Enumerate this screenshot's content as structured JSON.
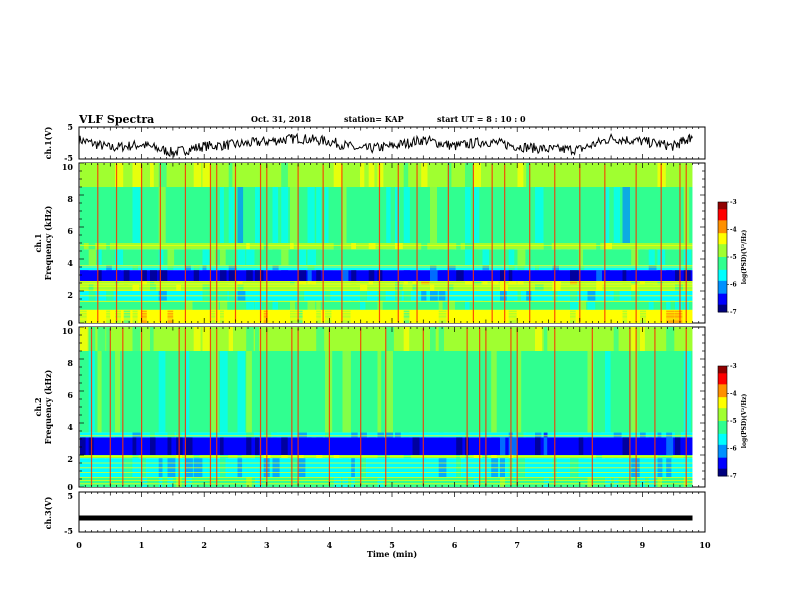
{
  "header": {
    "title": "VLF Spectra",
    "date": "Oct. 31, 2018",
    "station": "station= KAP",
    "start": "start  UT =  8 : 10 : 0"
  },
  "colors": {
    "frame": "#000000",
    "spectro_stops": [
      "#00007f",
      "#0000ff",
      "#0090ff",
      "#00ffff",
      "#30ff90",
      "#a0ff30",
      "#ffff00",
      "#ff9000",
      "#ff0000",
      "#900000"
    ]
  },
  "chart_data": [
    {
      "type": "line",
      "panel": "ch1-waveform",
      "ylabel": "ch.1(V)",
      "ylim": [
        -5,
        5
      ],
      "yticks": [
        "5",
        "-5"
      ],
      "x": [
        0,
        0.5,
        1,
        1.5,
        2,
        2.5,
        3,
        3.5,
        4,
        4.5,
        5,
        5.5,
        6,
        6.5,
        7,
        7.5,
        8,
        8.5,
        9,
        9.5,
        9.8
      ],
      "y": [
        1.0,
        -1.5,
        -0.5,
        -3.0,
        -1.0,
        -0.5,
        0.5,
        1.5,
        0.5,
        -2.0,
        -1.0,
        1.0,
        -1.0,
        0.5,
        -1.0,
        -2.0,
        -2.0,
        1.5,
        0.5,
        -1.0,
        2.0
      ]
    },
    {
      "type": "heatmap",
      "panel": "ch1-spectrogram",
      "ylabel": "ch.1\nFrequency (kHz)",
      "ylim": [
        0,
        10
      ],
      "yticks": [
        "0",
        "2",
        "4",
        "6",
        "8",
        "10"
      ],
      "colorbar": {
        "label": "log(PSD)(V²/Hz)",
        "range": [
          -7,
          -3
        ],
        "ticks": [
          "-3",
          "-4",
          "-5",
          "-6",
          "-7"
        ]
      },
      "bands_khz": [
        {
          "range": [
            8.5,
            10
          ],
          "level": 0.58
        },
        {
          "range": [
            5.0,
            8.5
          ],
          "level": 0.4
        },
        {
          "range": [
            4.6,
            5.0
          ],
          "level": 0.55
        },
        {
          "range": [
            3.6,
            4.6
          ],
          "level": 0.42
        },
        {
          "range": [
            3.3,
            3.6
          ],
          "level": 0.3
        },
        {
          "range": [
            2.6,
            3.3
          ],
          "level": 0.06
        },
        {
          "range": [
            2.4,
            2.6
          ],
          "level": 0.6
        },
        {
          "range": [
            2.0,
            2.4
          ],
          "level": 0.55
        },
        {
          "range": [
            1.4,
            2.0
          ],
          "level": 0.35
        },
        {
          "range": [
            0.8,
            1.4
          ],
          "level": 0.45
        },
        {
          "range": [
            0,
            0.8
          ],
          "level": 0.62
        }
      ],
      "lines_khz": [
        0.2,
        0.3,
        0.5,
        0.65,
        0.8,
        1.35,
        1.7,
        2.05,
        2.3,
        2.45,
        2.6,
        3.5,
        3.6,
        4.85
      ],
      "spikes_min": [
        0.3,
        0.6,
        1.0,
        1.3,
        1.7,
        2.1,
        2.2,
        2.5,
        2.9,
        3.0,
        3.5,
        3.9,
        4.2,
        4.8,
        5.1,
        5.4,
        5.9,
        6.3,
        6.6,
        6.8,
        7.2,
        7.6,
        8.0,
        8.4,
        8.9,
        9.3,
        9.6,
        9.7
      ]
    },
    {
      "type": "heatmap",
      "panel": "ch2-spectrogram",
      "ylabel": "ch.2\nFrequency (kHz)",
      "ylim": [
        0,
        10
      ],
      "yticks": [
        "0",
        "2",
        "4",
        "6",
        "8",
        "10"
      ],
      "colorbar": {
        "label": "log(PSD)(V²/Hz)",
        "range": [
          -7,
          -3
        ],
        "ticks": [
          "-3",
          "-4",
          "-5",
          "-6",
          "-7"
        ]
      },
      "bands_khz": [
        {
          "range": [
            8.5,
            10
          ],
          "level": 0.58
        },
        {
          "range": [
            3.4,
            8.5
          ],
          "level": 0.45
        },
        {
          "range": [
            3.1,
            3.4
          ],
          "level": 0.3
        },
        {
          "range": [
            2.0,
            3.1
          ],
          "level": 0.06
        },
        {
          "range": [
            1.8,
            2.0
          ],
          "level": 0.55
        },
        {
          "range": [
            0.6,
            1.8
          ],
          "level": 0.3
        },
        {
          "range": [
            0,
            0.6
          ],
          "level": 0.4
        }
      ],
      "lines_khz": [
        0.2,
        0.4,
        0.6,
        0.9,
        1.2,
        1.5,
        1.9,
        3.2
      ],
      "spikes_min": [
        0.2,
        0.5,
        0.7,
        1.0,
        1.6,
        1.7,
        2.1,
        2.2,
        2.9,
        3.0,
        3.4,
        3.5,
        4.0,
        4.5,
        4.9,
        5.5,
        6.2,
        6.4,
        6.5,
        6.9,
        7.0,
        7.6,
        8.2,
        8.8,
        8.9,
        9.2,
        9.7
      ]
    },
    {
      "type": "line",
      "panel": "ch3-waveform",
      "ylabel": "ch.3(V)",
      "ylim": [
        -5,
        5
      ],
      "yticks": [
        "5",
        "-5"
      ],
      "xlabel": "Time  (min)",
      "xlim": [
        0,
        10
      ],
      "xticks": [
        "0",
        "1",
        "2",
        "3",
        "4",
        "5",
        "6",
        "7",
        "8",
        "9",
        "10"
      ],
      "x": [
        0,
        9.8
      ],
      "y": [
        -1.5,
        -1.5
      ]
    }
  ]
}
